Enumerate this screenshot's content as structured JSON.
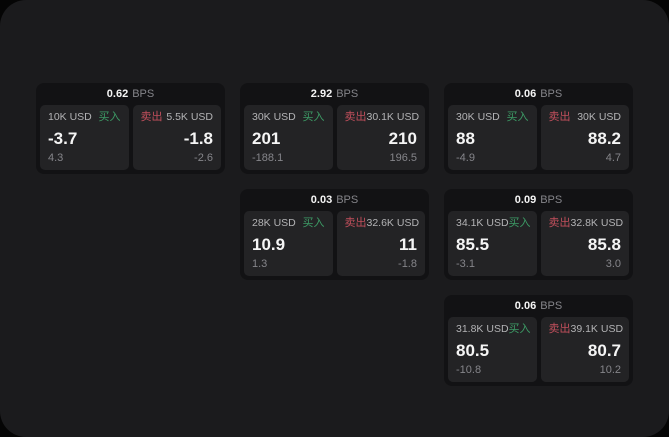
{
  "labels": {
    "bps_unit": "BPS",
    "buy": "买入",
    "sell": "卖出"
  },
  "colors": {
    "outer_background": "#050505",
    "panel_background": "#1b1b1d",
    "card_background": "#121214",
    "cell_background": "#232325",
    "buy_green": "#3d9c66",
    "sell_red": "#c14f5c",
    "value_text": "#f5f5f5",
    "amount_label_text": "#b3b3b5",
    "muted_text": "#85858a"
  },
  "cards": [
    {
      "bps": "0.62",
      "buy": {
        "amount": "10K USD",
        "price": "-3.7",
        "delta": "4.3"
      },
      "sell": {
        "amount": "5.5K USD",
        "price": "-1.8",
        "delta": "-2.6"
      }
    },
    {
      "bps": "2.92",
      "buy": {
        "amount": "30K USD",
        "price": "201",
        "delta": "-188.1"
      },
      "sell": {
        "amount": "30.1K USD",
        "price": "210",
        "delta": "196.5"
      }
    },
    {
      "bps": "0.06",
      "buy": {
        "amount": "30K USD",
        "price": "88",
        "delta": "-4.9"
      },
      "sell": {
        "amount": "30K USD",
        "price": "88.2",
        "delta": "4.7"
      }
    },
    {
      "bps": "0.03",
      "buy": {
        "amount": "28K USD",
        "price": "10.9",
        "delta": "1.3"
      },
      "sell": {
        "amount": "32.6K USD",
        "price": "11",
        "delta": "-1.8"
      }
    },
    {
      "bps": "0.09",
      "buy": {
        "amount": "34.1K USD",
        "price": "85.5",
        "delta": "-3.1"
      },
      "sell": {
        "amount": "32.8K USD",
        "price": "85.8",
        "delta": "3.0"
      }
    },
    {
      "bps": "0.06",
      "buy": {
        "amount": "31.8K USD",
        "price": "80.5",
        "delta": "-10.8"
      },
      "sell": {
        "amount": "39.1K USD",
        "price": "80.7",
        "delta": "10.2"
      }
    }
  ]
}
